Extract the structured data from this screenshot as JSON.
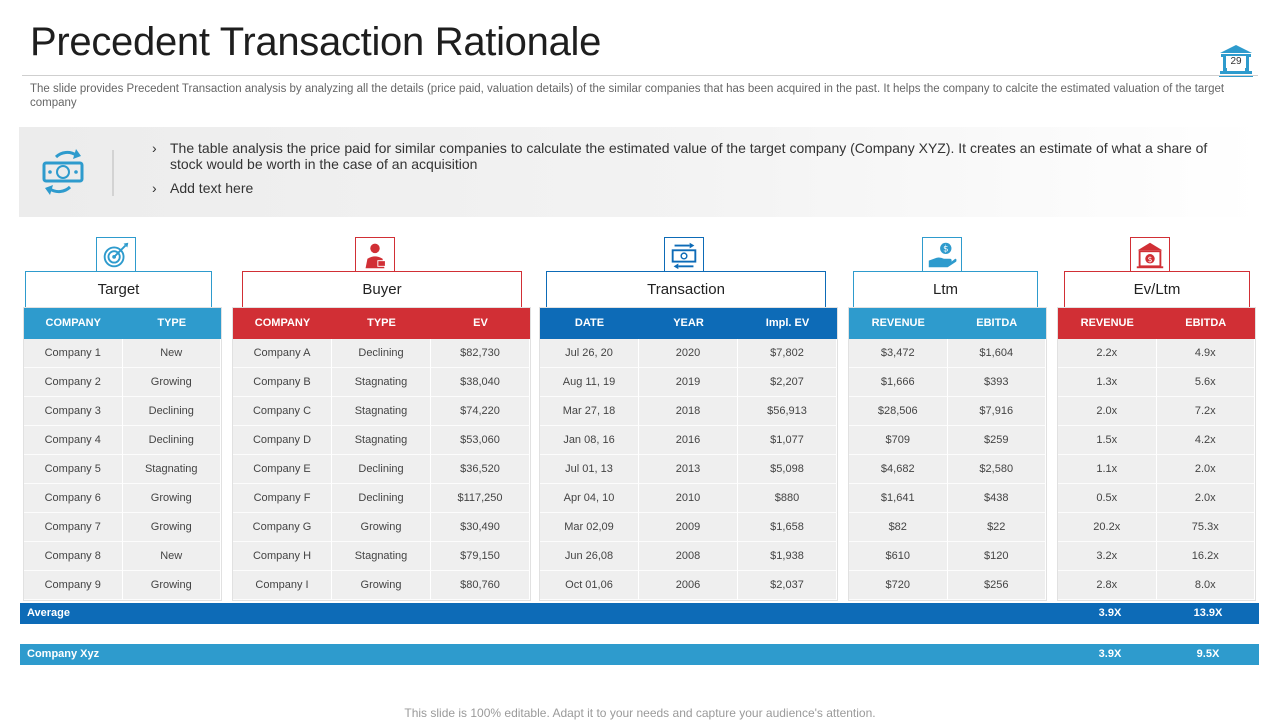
{
  "slide": {
    "title": "Precedent Transaction Rationale",
    "page_number": "29",
    "subtitle": "The slide provides Precedent Transaction analysis by analyzing all the details (price paid, valuation details) of the similar companies that has been acquired in the past. It helps the company to calcite the estimated valuation of the target company",
    "footer": "This slide is 100% editable. Adapt it to your needs and capture your audience's attention."
  },
  "info": {
    "bullets": [
      "The table analysis the price paid for similar companies to calculate the estimated value of the target company (Company XYZ). It creates an estimate of what a share of stock would be worth in the case of an acquisition",
      "Add text here"
    ]
  },
  "colors": {
    "blue": "#2e9bcd",
    "red": "#d12f35",
    "navy": "#0d6bb7"
  },
  "groups": [
    {
      "title": "Target",
      "icon": "target-icon",
      "color": "#2e9bcd",
      "headers": [
        "COMPANY",
        "TYPE"
      ],
      "rows": [
        [
          "Company 1",
          "New"
        ],
        [
          "Company 2",
          "Growing"
        ],
        [
          "Company 3",
          "Declining"
        ],
        [
          "Company 4",
          "Declining"
        ],
        [
          "Company 5",
          "Stagnating"
        ],
        [
          "Company 6",
          "Growing"
        ],
        [
          "Company 7",
          "Growing"
        ],
        [
          "Company 8",
          "New"
        ],
        [
          "Company 9",
          "Growing"
        ]
      ]
    },
    {
      "title": "Buyer",
      "icon": "businessman-icon",
      "color": "#d12f35",
      "headers": [
        "COMPANY",
        "TYPE",
        "EV"
      ],
      "rows": [
        [
          "Company A",
          "Declining",
          "$82,730"
        ],
        [
          "Company B",
          "Stagnating",
          "$38,040"
        ],
        [
          "Company C",
          "Stagnating",
          "$74,220"
        ],
        [
          "Company D",
          "Stagnating",
          "$53,060"
        ],
        [
          "Company E",
          "Declining",
          "$36,520"
        ],
        [
          "Company F",
          "Declining",
          "$117,250"
        ],
        [
          "Company G",
          "Growing",
          "$30,490"
        ],
        [
          "Company H",
          "Stagnating",
          "$79,150"
        ],
        [
          "Company I",
          "Growing",
          "$80,760"
        ]
      ]
    },
    {
      "title": "Transaction",
      "icon": "money-exchange-icon",
      "color": "#0d6bb7",
      "headers": [
        "DATE",
        "YEAR",
        "Impl. EV"
      ],
      "rows": [
        [
          "Jul 26, 20",
          "2020",
          "$7,802"
        ],
        [
          "Aug 11, 19",
          "2019",
          "$2,207"
        ],
        [
          "Mar 27, 18",
          "2018",
          "$56,913"
        ],
        [
          "Jan 08, 16",
          "2016",
          "$1,077"
        ],
        [
          "Jul 01, 13",
          "2013",
          "$5,098"
        ],
        [
          "Apr 04, 10",
          "2010",
          "$880"
        ],
        [
          "Mar 02,09",
          "2009",
          "$1,658"
        ],
        [
          "Jun 26,08",
          "2008",
          "$1,938"
        ],
        [
          "Oct 01,06",
          "2006",
          "$2,037"
        ]
      ]
    },
    {
      "title": "Ltm",
      "icon": "hand-coin-icon",
      "color": "#2e9bcd",
      "headers": [
        "REVENUE",
        "EBITDA"
      ],
      "rows": [
        [
          "$3,472",
          "$1,604"
        ],
        [
          "$1,666",
          "$393"
        ],
        [
          "$28,506",
          "$7,916"
        ],
        [
          "$709",
          "$259"
        ],
        [
          "$4,682",
          "$2,580"
        ],
        [
          "$1,641",
          "$438"
        ],
        [
          "$82",
          "$22"
        ],
        [
          "$610",
          "$120"
        ],
        [
          "$720",
          "$256"
        ]
      ]
    },
    {
      "title": "Ev/Ltm",
      "icon": "bank-dollar-icon",
      "color": "#d12f35",
      "headers": [
        "REVENUE",
        "EBITDA"
      ],
      "rows": [
        [
          "2.2x",
          "4.9x"
        ],
        [
          "1.3x",
          "5.6x"
        ],
        [
          "2.0x",
          "7.2x"
        ],
        [
          "1.5x",
          "4.2x"
        ],
        [
          "1.1x",
          "2.0x"
        ],
        [
          "0.5x",
          "2.0x"
        ],
        [
          "20.2x",
          "75.3x"
        ],
        [
          "3.2x",
          "16.2x"
        ],
        [
          "2.8x",
          "8.0x"
        ]
      ]
    }
  ],
  "summary": {
    "average": {
      "label": "Average",
      "revenue": "3.9X",
      "ebitda": "13.9X"
    },
    "company_xyz": {
      "label": "Company Xyz",
      "revenue": "3.9X",
      "ebitda": "9.5X"
    }
  }
}
